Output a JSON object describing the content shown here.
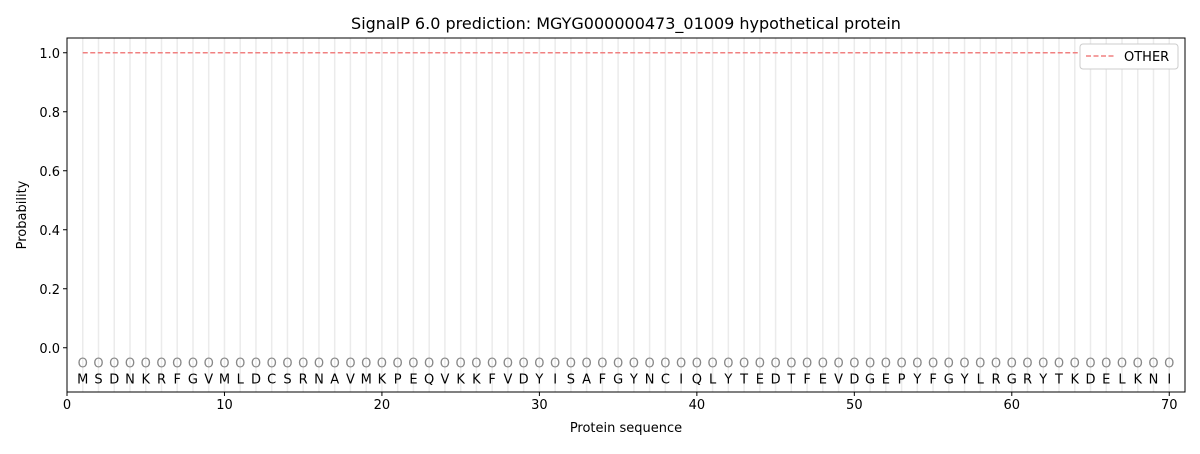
{
  "chart_data": {
    "type": "line",
    "title": "SignalP 6.0 prediction: MGYG000000473_01009 hypothetical protein",
    "xlabel": "Protein sequence",
    "ylabel": "Probability",
    "xlim": [
      0,
      71
    ],
    "ylim": [
      -0.15,
      1.05
    ],
    "xticks": [
      0,
      10,
      20,
      30,
      40,
      50,
      60,
      70
    ],
    "yticks": [
      0.0,
      0.2,
      0.4,
      0.6,
      0.8,
      1.0
    ],
    "ytick_labels": [
      "0.0",
      "0.2",
      "0.4",
      "0.6",
      "0.8",
      "1.0"
    ],
    "grid": "vertical lines at each residue",
    "legend_placement": "top-right",
    "sequence": [
      "M",
      "S",
      "D",
      "N",
      "K",
      "R",
      "F",
      "G",
      "V",
      "M",
      "L",
      "D",
      "C",
      "S",
      "R",
      "N",
      "A",
      "V",
      "M",
      "K",
      "P",
      "E",
      "Q",
      "V",
      "K",
      "K",
      "F",
      "V",
      "D",
      "Y",
      "I",
      "S",
      "A",
      "F",
      "G",
      "Y",
      "N",
      "C",
      "I",
      "Q",
      "L",
      "Y",
      "T",
      "E",
      "D",
      "T",
      "F",
      "E",
      "V",
      "D",
      "G",
      "E",
      "P",
      "Y",
      "F",
      "G",
      "Y",
      "L",
      "R",
      "G",
      "R",
      "Y",
      "T",
      "K",
      "D",
      "E",
      "L",
      "K",
      "N",
      "I"
    ],
    "predicted_label_marker": "O",
    "series": [
      {
        "name": "OTHER",
        "color": "#f08080",
        "style": "dashed",
        "x_range": [
          1,
          70
        ],
        "value": 1.0
      }
    ]
  }
}
